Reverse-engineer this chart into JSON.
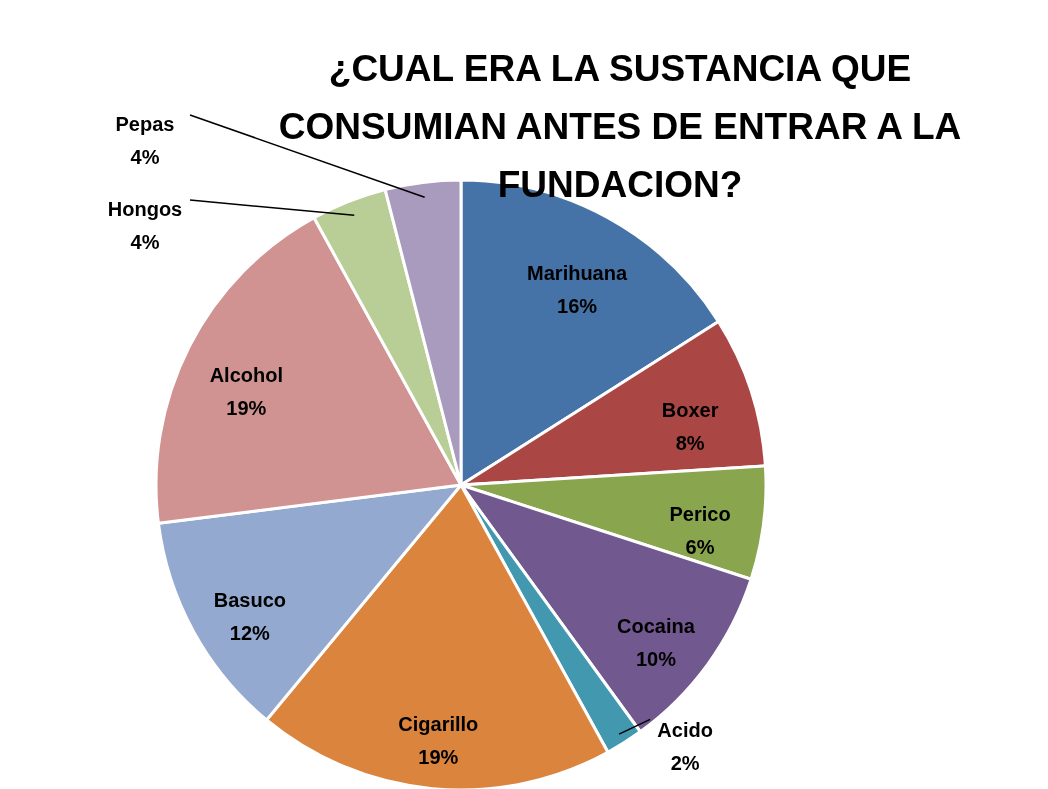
{
  "chart_data": {
    "type": "pie",
    "title": "¿CUAL ERA LA SUSTANCIA QUE CONSUMIAN ANTES DE ENTRAR A LA FUNDACION?",
    "categories": [
      "Marihuana",
      "Boxer",
      "Perico",
      "Cocaina",
      "Acido",
      "Cigarillo",
      "Basuco",
      "Alcohol",
      "Hongos",
      "Pepas"
    ],
    "values": [
      16,
      8,
      6,
      10,
      2,
      19,
      12,
      19,
      4,
      4
    ],
    "value_labels": [
      "16%",
      "8%",
      "6%",
      "10%",
      "2%",
      "19%",
      "12%",
      "19%",
      "4%",
      "4%"
    ],
    "colors": [
      "#4572a7",
      "#aa4643",
      "#89a54e",
      "#71588f",
      "#4198af",
      "#db843d",
      "#93a9cf",
      "#d19392",
      "#b9cd96",
      "#a99bbd"
    ],
    "legend": false
  }
}
